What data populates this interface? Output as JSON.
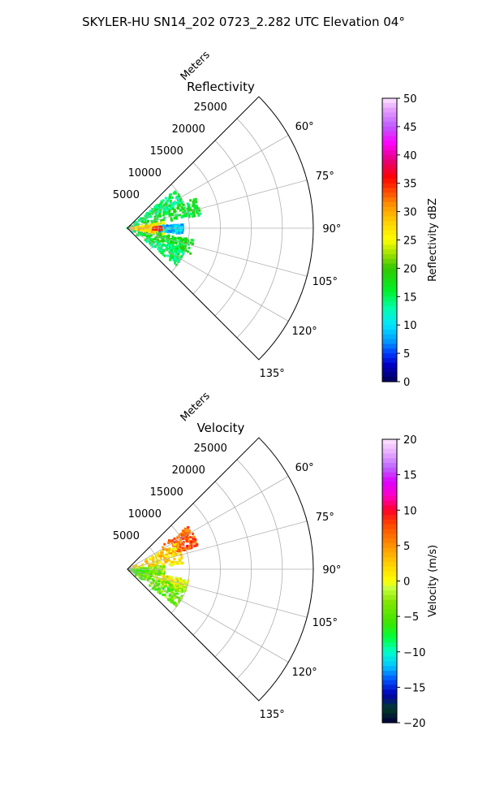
{
  "figure": {
    "suptitle": "SKYLER-HU  SN14_202  0723_2.282 UTC Elevation 04°"
  },
  "chart_data": [
    {
      "type": "heatmap",
      "subtype": "polar-sector",
      "title": "Reflectivity",
      "radial_label": "Meters",
      "radial_ticks": [
        "5000",
        "10000",
        "15000",
        "20000",
        "25000"
      ],
      "radial_tick_values": [
        5000,
        10000,
        15000,
        20000,
        25000
      ],
      "rmax": 30000,
      "theta_ticks": [
        "60°",
        "75°",
        "90°",
        "105°",
        "120°",
        "135°"
      ],
      "theta_tick_values": [
        60,
        75,
        90,
        105,
        120,
        135
      ],
      "theta_range": [
        45,
        135
      ],
      "grid": true,
      "colorbar": {
        "label": "Reflectivity dBZ",
        "ticks": [
          "0",
          "5",
          "10",
          "15",
          "20",
          "25",
          "30",
          "35",
          "40",
          "45",
          "50"
        ],
        "range": [
          0,
          50
        ],
        "colormap": "pyart_NWSRef"
      },
      "field_regions": [
        {
          "az": [
            52,
            66
          ],
          "r": [
            0,
            10000
          ],
          "value": 15
        },
        {
          "az": [
            66,
            80
          ],
          "r": [
            0,
            12000
          ],
          "value": 17
        },
        {
          "az": [
            80,
            100
          ],
          "r": [
            0,
            6000
          ],
          "value": 24
        },
        {
          "az": [
            86,
            96
          ],
          "r": [
            3000,
            9000
          ],
          "value": 9
        },
        {
          "az": [
            100,
            112
          ],
          "r": [
            0,
            11000
          ],
          "value": 17
        },
        {
          "az": [
            112,
            127
          ],
          "r": [
            0,
            10000
          ],
          "value": 15
        },
        {
          "az": [
            84,
            100
          ],
          "r": [
            0,
            4500
          ],
          "value": 28
        },
        {
          "az": [
            88,
            93
          ],
          "r": [
            4000,
            5500
          ],
          "value": 35
        }
      ]
    },
    {
      "type": "heatmap",
      "subtype": "polar-sector",
      "title": "Velocity",
      "radial_label": "Meters",
      "radial_ticks": [
        "5000",
        "10000",
        "15000",
        "20000",
        "25000"
      ],
      "radial_tick_values": [
        5000,
        10000,
        15000,
        20000,
        25000
      ],
      "rmax": 30000,
      "theta_ticks": [
        "60°",
        "75°",
        "90°",
        "105°",
        "120°",
        "135°"
      ],
      "theta_tick_values": [
        60,
        75,
        90,
        105,
        120,
        135
      ],
      "theta_range": [
        45,
        135
      ],
      "grid": true,
      "colorbar": {
        "label": "Velocity (m/s)",
        "ticks": [
          "−20",
          "−15",
          "−10",
          "−5",
          "0",
          "5",
          "10",
          "15",
          "20"
        ],
        "range": [
          -20,
          20
        ],
        "colormap": "pyart_BuDRd18"
      },
      "field_regions": [
        {
          "az": [
            55,
            72
          ],
          "r": [
            6000,
            12000
          ],
          "value": 7
        },
        {
          "az": [
            62,
            85
          ],
          "r": [
            0,
            9000
          ],
          "value": 2
        },
        {
          "az": [
            85,
            100
          ],
          "r": [
            0,
            6000
          ],
          "value": -3
        },
        {
          "az": [
            100,
            112
          ],
          "r": [
            3000,
            10000
          ],
          "value": 0
        },
        {
          "az": [
            108,
            127
          ],
          "r": [
            0,
            10000
          ],
          "value": -4
        },
        {
          "az": [
            95,
            115
          ],
          "r": [
            0,
            4000
          ],
          "value": -5
        }
      ]
    }
  ]
}
